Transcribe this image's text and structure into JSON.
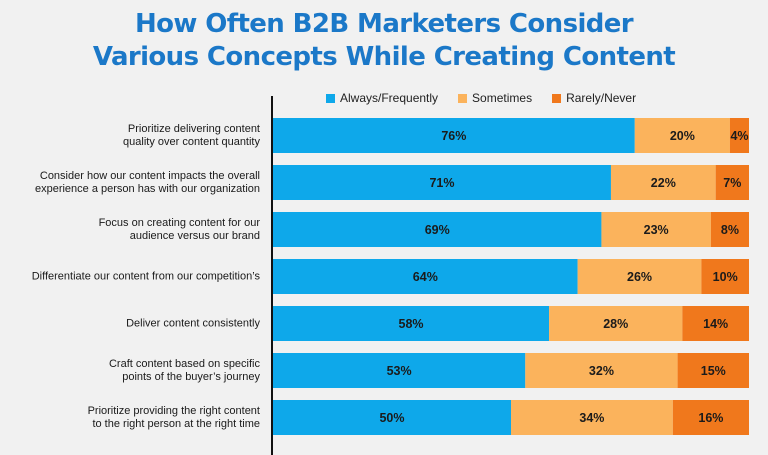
{
  "title_lines": [
    "How Often B2B Marketers Consider",
    "Various Concepts While Creating Content"
  ],
  "legend": [
    {
      "label": "Always/Frequently",
      "color": "#0ea8ea"
    },
    {
      "label": "Sometimes",
      "color": "#fbb35c"
    },
    {
      "label": "Rarely/Never",
      "color": "#f0781c"
    }
  ],
  "chart_data": {
    "type": "bar",
    "orientation": "horizontal",
    "stacked": true,
    "categories": [
      "Prioritize delivering content quality over content quantity",
      "Consider how our content impacts the overall experience a person has with our organization",
      "Focus on creating content for our audience versus our brand",
      "Differentiate our content from our competition's",
      "Deliver content consistently",
      "Craft content based on specific points of the buyer's journey",
      "Prioritize providing the right content to the right person at the right time"
    ],
    "category_label_lines": [
      [
        "Prioritize delivering content",
        "quality over content quantity"
      ],
      [
        "Consider how our content impacts the overall",
        "experience a person has with our organization"
      ],
      [
        "Focus on creating content for our",
        "audience versus our brand"
      ],
      [
        "Differentiate our content from our competition’s"
      ],
      [
        "Deliver content consistently"
      ],
      [
        "Craft content based on specific",
        "points of the buyer’s journey"
      ],
      [
        "Prioritize providing the right content",
        "to the right person at the right time"
      ]
    ],
    "series": [
      {
        "name": "Always/Frequently",
        "values": [
          76,
          71,
          69,
          64,
          58,
          53,
          50
        ],
        "labels": [
          "76%",
          "71%",
          "69%",
          "64%",
          "58%",
          "53%",
          "50%"
        ],
        "color": "#0ea8ea"
      },
      {
        "name": "Sometimes",
        "values": [
          20,
          22,
          23,
          26,
          28,
          32,
          34
        ],
        "labels": [
          "20%",
          "22%",
          "23%",
          "26%",
          "28%",
          "32%",
          "34%"
        ],
        "color": "#fbb35c"
      },
      {
        "name": "Rarely/Never",
        "values": [
          4,
          7,
          8,
          10,
          14,
          15,
          16
        ],
        "labels": [
          "4%",
          "7%",
          "8%",
          "10%",
          "14%",
          "15%",
          "16%"
        ],
        "color": "#f0781c"
      }
    ],
    "xlim": [
      0,
      100
    ],
    "legend_position": "top",
    "grid": false
  }
}
